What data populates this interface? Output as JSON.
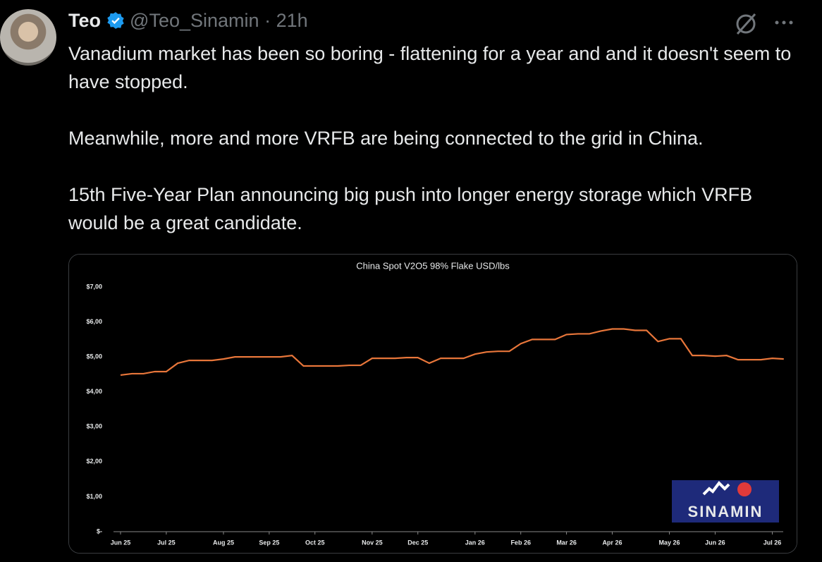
{
  "tweet": {
    "name": "Teo",
    "handle": "@Teo_Sinamin",
    "separator": "·",
    "time": "21h",
    "paragraphs": [
      "Vanadium market has been so boring - flattening for a year and and it doesn't seem to have stopped.",
      "Meanwhile, more and more VRFB are being connected to the grid in China.",
      "15th Five-Year Plan announcing big push into longer energy storage which VRFB would be a great candidate."
    ]
  },
  "chart_data": {
    "type": "line",
    "title": "China Spot V2O5 98% Flake USD/lbs",
    "logo": "SINAMIN",
    "categories": [
      "Jun 25",
      null,
      null,
      null,
      "Jul 25",
      null,
      null,
      null,
      null,
      "Aug 25",
      null,
      null,
      null,
      "Sep 25",
      null,
      null,
      null,
      "Oct 25",
      null,
      null,
      null,
      null,
      "Nov 25",
      null,
      null,
      null,
      "Dec 25",
      null,
      null,
      null,
      null,
      "Jan 26",
      null,
      null,
      null,
      "Feb 26",
      null,
      null,
      null,
      "Mar 26",
      null,
      null,
      null,
      "Apr 26",
      null,
      null,
      null,
      null,
      "May 26",
      null,
      null,
      null,
      "Jun 26",
      null,
      null,
      null,
      null,
      "Jul 26",
      null
    ],
    "series": [
      {
        "name": "China Spot V2O5 98% Flake",
        "color": "#e8763a",
        "values": [
          4.48,
          4.52,
          4.52,
          4.58,
          4.58,
          4.82,
          4.9,
          4.9,
          4.9,
          4.94,
          5.0,
          5.0,
          5.0,
          5.0,
          5.0,
          5.04,
          4.74,
          4.74,
          4.74,
          4.74,
          4.76,
          4.76,
          4.96,
          4.96,
          4.96,
          4.98,
          4.98,
          4.82,
          4.96,
          4.96,
          4.96,
          5.08,
          5.14,
          5.16,
          5.16,
          5.38,
          5.5,
          5.5,
          5.5,
          5.64,
          5.66,
          5.66,
          5.74,
          5.8,
          5.8,
          5.76,
          5.76,
          5.44,
          5.52,
          5.52,
          5.04,
          5.04,
          5.02,
          5.04,
          4.92,
          4.92,
          4.92,
          4.96,
          4.94
        ]
      }
    ],
    "ylim": [
      0,
      7
    ],
    "yticks": [
      {
        "value": 0,
        "label": "$-"
      },
      {
        "value": 1,
        "label": "$1,00"
      },
      {
        "value": 2,
        "label": "$2,00"
      },
      {
        "value": 3,
        "label": "$3,00"
      },
      {
        "value": 4,
        "label": "$4,00"
      },
      {
        "value": 5,
        "label": "$5,00"
      },
      {
        "value": 6,
        "label": "$6,00"
      },
      {
        "value": 7,
        "label": "$7,00"
      }
    ],
    "grid": false
  }
}
